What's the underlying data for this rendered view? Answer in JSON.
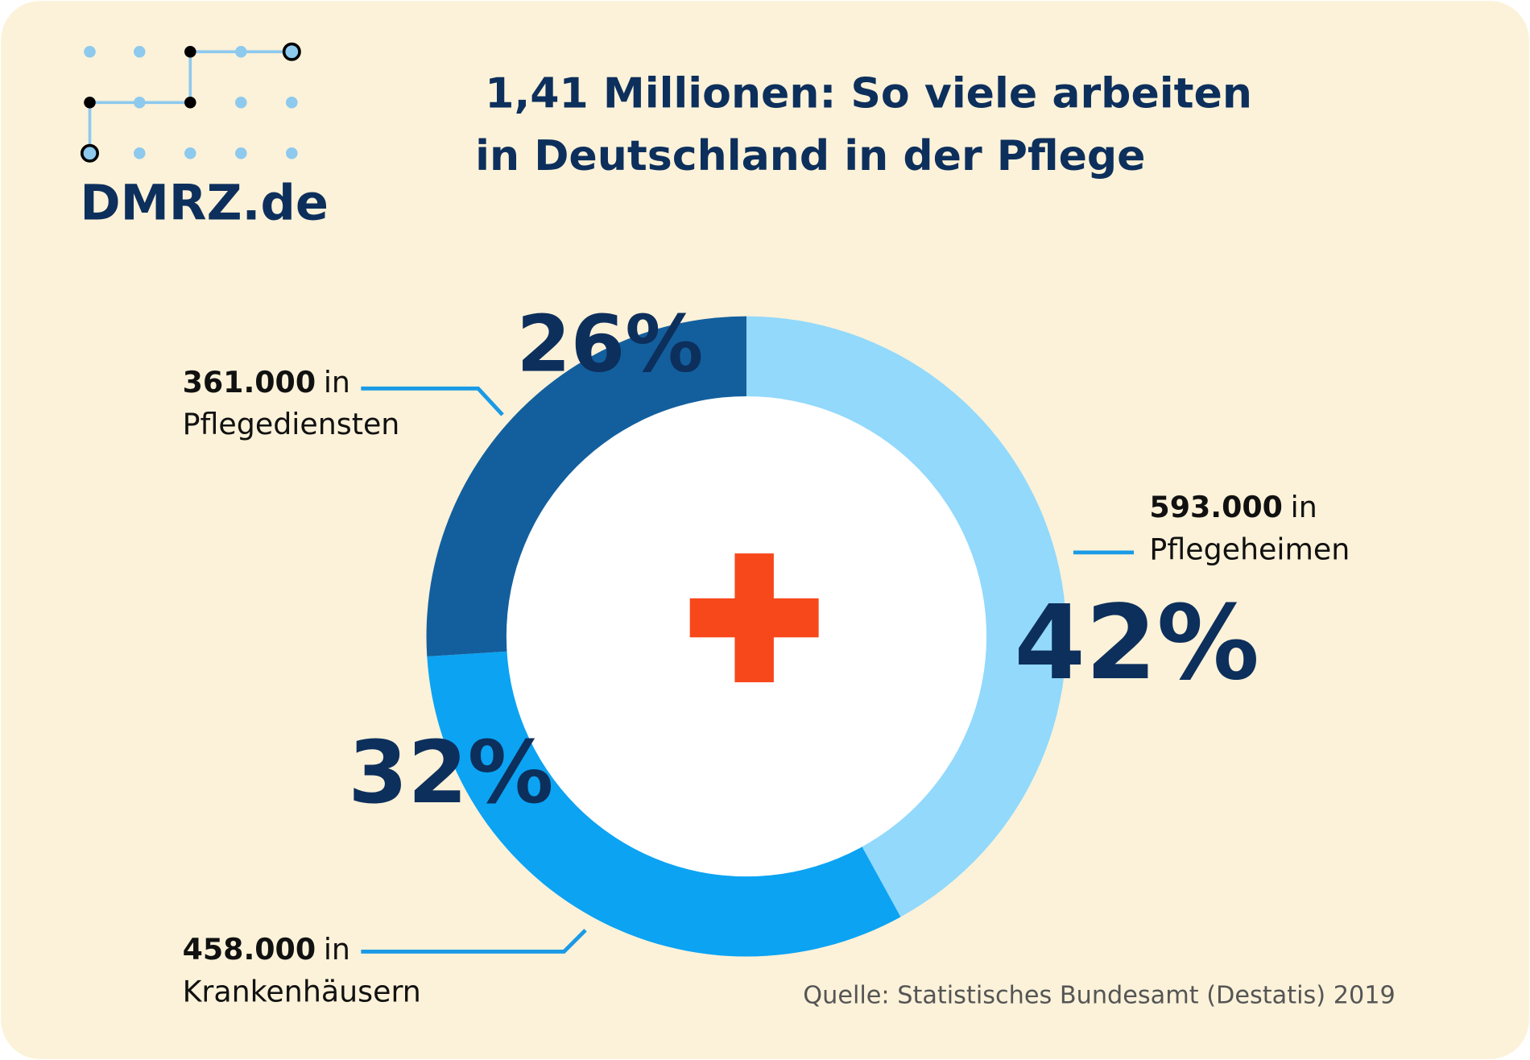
{
  "logo": "DMRZ.de",
  "chart_data": {
    "type": "donut",
    "title": [
      "1,41 Millionen: So viele arbeiten",
      "in Deutschland in der Pflege"
    ],
    "categories": [
      "Pflegeheimen",
      "Krankenhäusern",
      "Pflegediensten"
    ],
    "values": [
      42,
      32,
      26
    ],
    "value_labels": [
      "42%",
      "32%",
      "26%"
    ],
    "counts": [
      "593.000",
      "458.000",
      "361.000"
    ],
    "label_joiner": "in",
    "colors": [
      "#92d9fc",
      "#0ca3f3",
      "#135f9e"
    ],
    "source": "Quelle: Statistisches Bundesamt (Destatis) 2019"
  }
}
